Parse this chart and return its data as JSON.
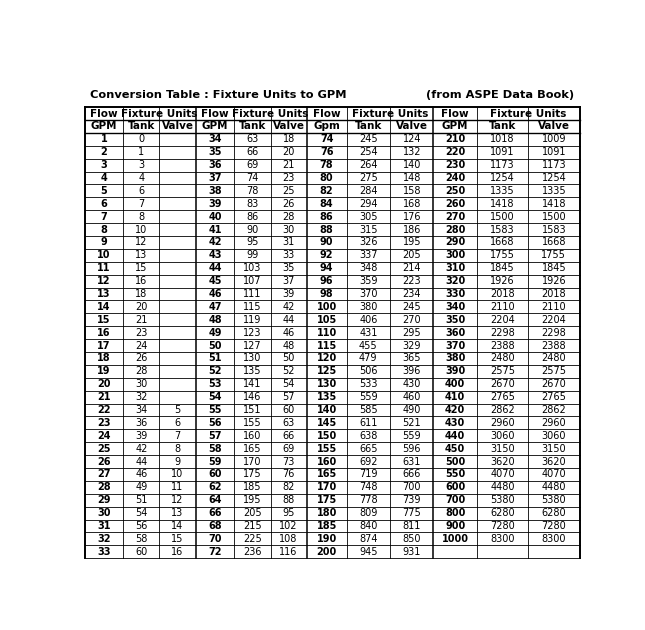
{
  "title_left": "Conversion Table : Fixture Units to GPM",
  "title_right": "(from ASPE Data Book)",
  "col_headers_row1": [
    [
      0,
      0,
      "Flow"
    ],
    [
      1,
      2,
      "Fixture Units"
    ],
    [
      3,
      3,
      "Flow"
    ],
    [
      4,
      5,
      "Fixture Units"
    ],
    [
      6,
      6,
      "Flow"
    ],
    [
      7,
      8,
      "Fixture Units"
    ],
    [
      9,
      9,
      "Flow"
    ],
    [
      10,
      11,
      "Fixture Units"
    ]
  ],
  "col_headers_row2": [
    "GPM",
    "Tank",
    "Valve",
    "GPM",
    "Tank",
    "Valve",
    "Gpm",
    "Tank",
    "Valve",
    "GPM",
    "Tank",
    "Valve"
  ],
  "rows": [
    [
      "1",
      "0",
      "",
      "34",
      "63",
      "18",
      "74",
      "245",
      "124",
      "210",
      "1018",
      "1009"
    ],
    [
      "2",
      "1",
      "",
      "35",
      "66",
      "20",
      "76",
      "254",
      "132",
      "220",
      "1091",
      "1091"
    ],
    [
      "3",
      "3",
      "",
      "36",
      "69",
      "21",
      "78",
      "264",
      "140",
      "230",
      "1173",
      "1173"
    ],
    [
      "4",
      "4",
      "",
      "37",
      "74",
      "23",
      "80",
      "275",
      "148",
      "240",
      "1254",
      "1254"
    ],
    [
      "5",
      "6",
      "",
      "38",
      "78",
      "25",
      "82",
      "284",
      "158",
      "250",
      "1335",
      "1335"
    ],
    [
      "6",
      "7",
      "",
      "39",
      "83",
      "26",
      "84",
      "294",
      "168",
      "260",
      "1418",
      "1418"
    ],
    [
      "7",
      "8",
      "",
      "40",
      "86",
      "28",
      "86",
      "305",
      "176",
      "270",
      "1500",
      "1500"
    ],
    [
      "8",
      "10",
      "",
      "41",
      "90",
      "30",
      "88",
      "315",
      "186",
      "280",
      "1583",
      "1583"
    ],
    [
      "9",
      "12",
      "",
      "42",
      "95",
      "31",
      "90",
      "326",
      "195",
      "290",
      "1668",
      "1668"
    ],
    [
      "10",
      "13",
      "",
      "43",
      "99",
      "33",
      "92",
      "337",
      "205",
      "300",
      "1755",
      "1755"
    ],
    [
      "11",
      "15",
      "",
      "44",
      "103",
      "35",
      "94",
      "348",
      "214",
      "310",
      "1845",
      "1845"
    ],
    [
      "12",
      "16",
      "",
      "45",
      "107",
      "37",
      "96",
      "359",
      "223",
      "320",
      "1926",
      "1926"
    ],
    [
      "13",
      "18",
      "",
      "46",
      "111",
      "39",
      "98",
      "370",
      "234",
      "330",
      "2018",
      "2018"
    ],
    [
      "14",
      "20",
      "",
      "47",
      "115",
      "42",
      "100",
      "380",
      "245",
      "340",
      "2110",
      "2110"
    ],
    [
      "15",
      "21",
      "",
      "48",
      "119",
      "44",
      "105",
      "406",
      "270",
      "350",
      "2204",
      "2204"
    ],
    [
      "16",
      "23",
      "",
      "49",
      "123",
      "46",
      "110",
      "431",
      "295",
      "360",
      "2298",
      "2298"
    ],
    [
      "17",
      "24",
      "",
      "50",
      "127",
      "48",
      "115",
      "455",
      "329",
      "370",
      "2388",
      "2388"
    ],
    [
      "18",
      "26",
      "",
      "51",
      "130",
      "50",
      "120",
      "479",
      "365",
      "380",
      "2480",
      "2480"
    ],
    [
      "19",
      "28",
      "",
      "52",
      "135",
      "52",
      "125",
      "506",
      "396",
      "390",
      "2575",
      "2575"
    ],
    [
      "20",
      "30",
      "",
      "53",
      "141",
      "54",
      "130",
      "533",
      "430",
      "400",
      "2670",
      "2670"
    ],
    [
      "21",
      "32",
      "",
      "54",
      "146",
      "57",
      "135",
      "559",
      "460",
      "410",
      "2765",
      "2765"
    ],
    [
      "22",
      "34",
      "5",
      "55",
      "151",
      "60",
      "140",
      "585",
      "490",
      "420",
      "2862",
      "2862"
    ],
    [
      "23",
      "36",
      "6",
      "56",
      "155",
      "63",
      "145",
      "611",
      "521",
      "430",
      "2960",
      "2960"
    ],
    [
      "24",
      "39",
      "7",
      "57",
      "160",
      "66",
      "150",
      "638",
      "559",
      "440",
      "3060",
      "3060"
    ],
    [
      "25",
      "42",
      "8",
      "58",
      "165",
      "69",
      "155",
      "665",
      "596",
      "450",
      "3150",
      "3150"
    ],
    [
      "26",
      "44",
      "9",
      "59",
      "170",
      "73",
      "160",
      "692",
      "631",
      "500",
      "3620",
      "3620"
    ],
    [
      "27",
      "46",
      "10",
      "60",
      "175",
      "76",
      "165",
      "719",
      "666",
      "550",
      "4070",
      "4070"
    ],
    [
      "28",
      "49",
      "11",
      "62",
      "185",
      "82",
      "170",
      "748",
      "700",
      "600",
      "4480",
      "4480"
    ],
    [
      "29",
      "51",
      "12",
      "64",
      "195",
      "88",
      "175",
      "778",
      "739",
      "700",
      "5380",
      "5380"
    ],
    [
      "30",
      "54",
      "13",
      "66",
      "205",
      "95",
      "180",
      "809",
      "775",
      "800",
      "6280",
      "6280"
    ],
    [
      "31",
      "56",
      "14",
      "68",
      "215",
      "102",
      "185",
      "840",
      "811",
      "900",
      "7280",
      "7280"
    ],
    [
      "32",
      "58",
      "15",
      "70",
      "225",
      "108",
      "190",
      "874",
      "850",
      "1000",
      "8300",
      "8300"
    ],
    [
      "33",
      "60",
      "16",
      "72",
      "236",
      "116",
      "200",
      "945",
      "931",
      "",
      "",
      ""
    ]
  ],
  "bold_col_indices": [
    0,
    3,
    6,
    9
  ],
  "figsize": [
    6.45,
    6.3
  ],
  "dpi": 100
}
